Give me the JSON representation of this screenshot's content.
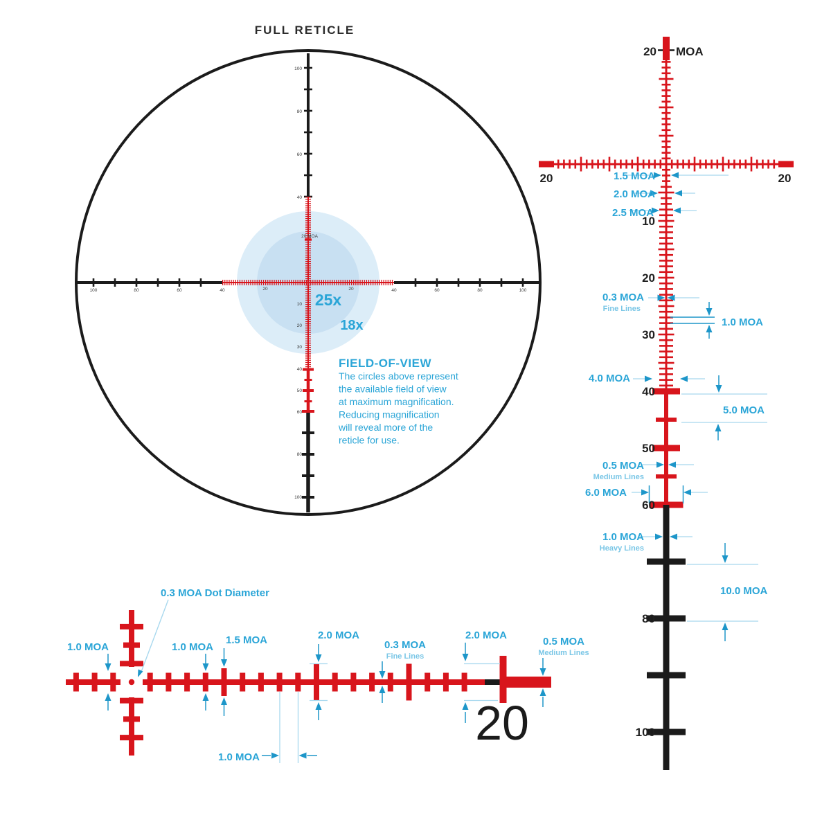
{
  "colors": {
    "red": "#d8151c",
    "black": "#1b1b1b",
    "blue_label": "#2aa5d7",
    "blue_arrow": "#1d96c9",
    "blue_thin": "#a8d8ee",
    "fov_outer": "#dcedf8",
    "fov_inner": "#c8e0f2"
  },
  "full_reticle": {
    "title": "FULL RETICLE",
    "mag_labels": {
      "inner": "25x",
      "outer": "18x"
    },
    "top_tick_label": "20 MOA",
    "fov": {
      "heading": "FIELD-OF-VIEW",
      "lines": [
        "The circles above represent",
        "the available field of view",
        "at maximum magnification.",
        "Reducing magnification",
        "will reveal more of the",
        "reticle for use."
      ]
    },
    "axis_labels": {
      "h_left": [
        "100",
        "80",
        "60",
        "40"
      ],
      "h_red": [
        "20",
        "20"
      ],
      "h_right": [
        "40",
        "60",
        "80",
        "100"
      ],
      "v_top": [
        "100",
        "80",
        "60",
        "40"
      ],
      "v_bottom": [
        "10",
        "20",
        "30",
        "40",
        "50",
        "60",
        "80",
        "100"
      ]
    }
  },
  "right_detail": {
    "top": {
      "value": "20",
      "unit": "MOA"
    },
    "h_end_labels": [
      "20",
      "20"
    ],
    "scale_labels": [
      "10",
      "20",
      "30",
      "40",
      "50",
      "60",
      "80",
      "100"
    ],
    "ann": {
      "a15": "1.5 MOA",
      "a20": "2.0 MOA",
      "a25": "2.5 MOA",
      "fine": {
        "label": "0.3 MOA",
        "sub": "Fine Lines"
      },
      "one_moa": "1.0 MOA",
      "four": "4.0 MOA",
      "five": "5.0 MOA",
      "medium": {
        "label": "0.5 MOA",
        "sub": "Medium Lines"
      },
      "six": "6.0 MOA",
      "heavy": {
        "label": "1.0 MOA",
        "sub": "Heavy Lines"
      },
      "ten": "10.0 MOA"
    }
  },
  "bottom_detail": {
    "dot_label": "0.3 MOA Dot Diameter",
    "ann": {
      "left_one": "1.0 MOA",
      "right_one": "1.0 MOA",
      "one_five": "1.5 MOA",
      "two_a": "2.0 MOA",
      "fine": {
        "label": "0.3 MOA",
        "sub": "Fine Lines"
      },
      "two_b": "2.0 MOA",
      "medium": {
        "label": "0.5 MOA",
        "sub": "Medium Lines"
      },
      "bottom_one": "1.0 MOA"
    },
    "big_number": "20"
  }
}
